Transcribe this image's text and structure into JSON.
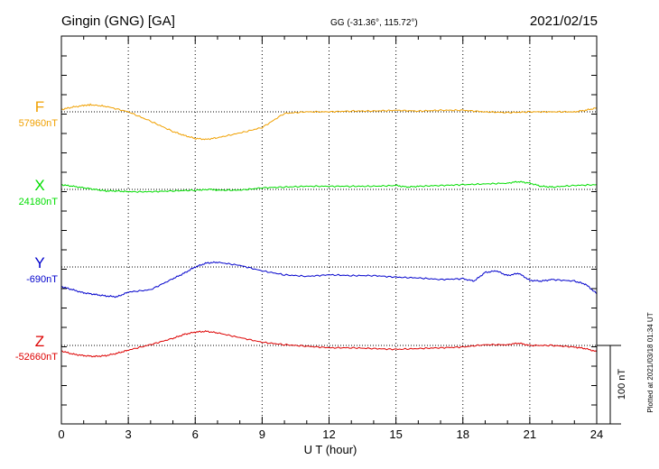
{
  "header": {
    "station": "Gingin (GNG)  [GA]",
    "coords": "GG (-31.36°, 115.72°)",
    "date": "2021/02/15"
  },
  "side_note": "Plotted at 2021/03/18 01:34 UT",
  "scale_label": "100 nT",
  "colors": {
    "F": "#f0a000",
    "X": "#00dd00",
    "Y": "#0000cc",
    "Z": "#dd0000",
    "grid": "#000000"
  },
  "chart_data": {
    "type": "line",
    "xlabel": "U T (hour)",
    "xlim": [
      0,
      24
    ],
    "xticks": [
      0,
      3,
      6,
      9,
      12,
      15,
      18,
      21,
      24
    ],
    "scale_bar_nT": 100,
    "series": [
      {
        "name": "F",
        "baseline_label": "57960nT",
        "x": [
          0,
          0.5,
          1,
          1.3,
          2,
          3,
          4,
          5,
          5.5,
          6,
          6.5,
          7,
          8,
          9,
          10,
          11,
          12,
          13,
          14,
          15,
          16,
          17,
          18,
          19,
          20,
          21,
          22,
          23,
          23.5,
          24
        ],
        "values": [
          57963,
          57966,
          57968,
          57969,
          57967,
          57960,
          57948,
          57935,
          57930,
          57926,
          57925,
          57927,
          57933,
          57940,
          57958,
          57960,
          57960,
          57961,
          57961,
          57962,
          57961,
          57962,
          57962,
          57960,
          57959,
          57960,
          57960,
          57960,
          57962,
          57965
        ]
      },
      {
        "name": "X",
        "baseline_label": "24180nT",
        "x": [
          0,
          0.5,
          1,
          1.5,
          2,
          2.5,
          3,
          4,
          5,
          6,
          6.7,
          7,
          8,
          9,
          10,
          11,
          12,
          13,
          14,
          15,
          15.5,
          16,
          17,
          18,
          19,
          20,
          20.5,
          21,
          21.5,
          22,
          23,
          24
        ],
        "values": [
          24186,
          24184,
          24182,
          24180,
          24178,
          24178,
          24177,
          24177,
          24178,
          24179,
          24180,
          24179,
          24179,
          24182,
          24183,
          24184,
          24184,
          24184,
          24184,
          24185,
          24183,
          24184,
          24185,
          24186,
          24187,
          24188,
          24190,
          24188,
          24184,
          24183,
          24185,
          24186
        ]
      },
      {
        "name": "Y",
        "baseline_label": "-690nT",
        "x": [
          0,
          0.5,
          1,
          1.5,
          2,
          2.5,
          3,
          4,
          5,
          5.5,
          6,
          6.5,
          7,
          8,
          9,
          10,
          11,
          12,
          13,
          14,
          15,
          16,
          17,
          18,
          18.5,
          19,
          19.5,
          20,
          20.5,
          21,
          21.5,
          22,
          23,
          23.5,
          24
        ],
        "values": [
          -715,
          -719,
          -723,
          -725,
          -727,
          -728,
          -722,
          -719,
          -705,
          -698,
          -690,
          -685,
          -684,
          -688,
          -695,
          -700,
          -702,
          -700,
          -701,
          -701,
          -703,
          -704,
          -706,
          -705,
          -708,
          -697,
          -695,
          -701,
          -698,
          -707,
          -708,
          -706,
          -708,
          -712,
          -724
        ]
      },
      {
        "name": "Z",
        "baseline_label": "-52660nT",
        "x": [
          0,
          0.5,
          1,
          1.5,
          2,
          2.5,
          3,
          4,
          5,
          5.5,
          6,
          6.5,
          7,
          8,
          9,
          10,
          11,
          12,
          13,
          14,
          15,
          16,
          17,
          18,
          19,
          20,
          20.5,
          21,
          22,
          23,
          23.5,
          24
        ],
        "values": [
          -52667,
          -52671,
          -52673,
          -52674,
          -52673,
          -52670,
          -52666,
          -52659,
          -52651,
          -52646,
          -52643,
          -52642,
          -52644,
          -52650,
          -52656,
          -52659,
          -52661,
          -52663,
          -52663,
          -52664,
          -52665,
          -52664,
          -52663,
          -52662,
          -52659,
          -52659,
          -52657,
          -52660,
          -52660,
          -52662,
          -52664,
          -52668
        ]
      }
    ]
  }
}
